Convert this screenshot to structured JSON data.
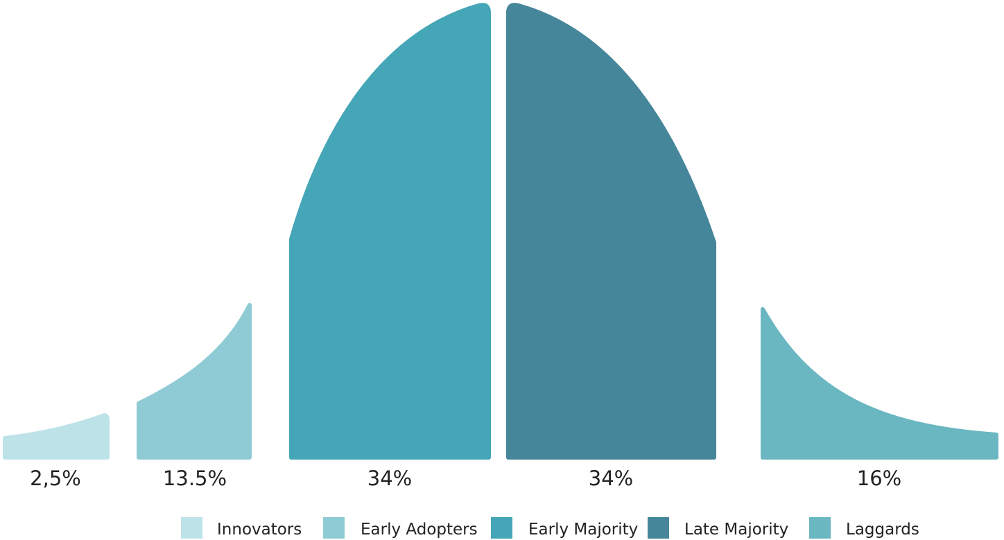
{
  "chart_data": {
    "type": "area",
    "segments": [
      {
        "name": "Innovators",
        "label": "2,5%",
        "value": 2.5,
        "color": "#bde2e8"
      },
      {
        "name": "Early Adopters",
        "label": "13.5%",
        "value": 13.5,
        "color": "#8fcbd5"
      },
      {
        "name": "Early Majority",
        "label": "34%",
        "value": 34,
        "color": "#44a6b6"
      },
      {
        "name": "Late Majority",
        "label": "34%",
        "value": 34,
        "color": "#46869b"
      },
      {
        "name": "Laggards",
        "label": "16%",
        "value": 16,
        "color": "#6bb7c1"
      }
    ],
    "legend": {
      "placement": "bottom",
      "entries": [
        "Innovators",
        "Early Adopters",
        "Early Majority",
        "Late Majority",
        "Laggards"
      ]
    },
    "title": "",
    "xlabel": "",
    "ylabel": ""
  }
}
